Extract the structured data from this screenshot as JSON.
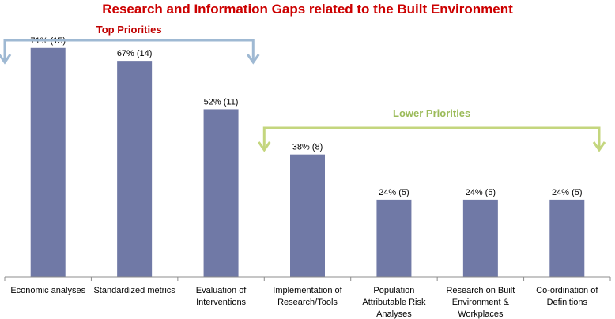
{
  "chart_data": {
    "type": "bar",
    "title": "Research and Information Gaps related to the Built Environment",
    "categories": [
      [
        "Economic analyses"
      ],
      [
        "Standardized metrics"
      ],
      [
        "Evaluation of",
        "Interventions"
      ],
      [
        "Implementation of",
        "Research/Tools"
      ],
      [
        "Population",
        "Attributable Risk",
        "Analyses"
      ],
      [
        "Research on Built",
        "Environment &",
        "Workplaces"
      ],
      [
        "Co-ordination of",
        "Definitions"
      ]
    ],
    "values": [
      71,
      67,
      52,
      38,
      24,
      24,
      24
    ],
    "data_labels": [
      "71% (15)",
      "67% (14)",
      "52% (11)",
      "38% (8)",
      "24% (5)",
      "24% (5)",
      "24% (5)"
    ],
    "ylim": [
      0,
      80
    ],
    "grid": false,
    "annotations": [
      {
        "text": "Top Priorities",
        "span_categories": [
          0,
          2
        ]
      },
      {
        "text": "Lower Priorities",
        "span_categories": [
          3,
          6
        ]
      }
    ]
  },
  "colors": {
    "bar": "#7079a6",
    "title": "#cc0000",
    "top_priorities": "#c00000",
    "lower_priorities": "#9bbb59",
    "top_bracket": "#9fb9d3",
    "lower_bracket": "#c4d67e",
    "axis": "#8c8c8c"
  }
}
